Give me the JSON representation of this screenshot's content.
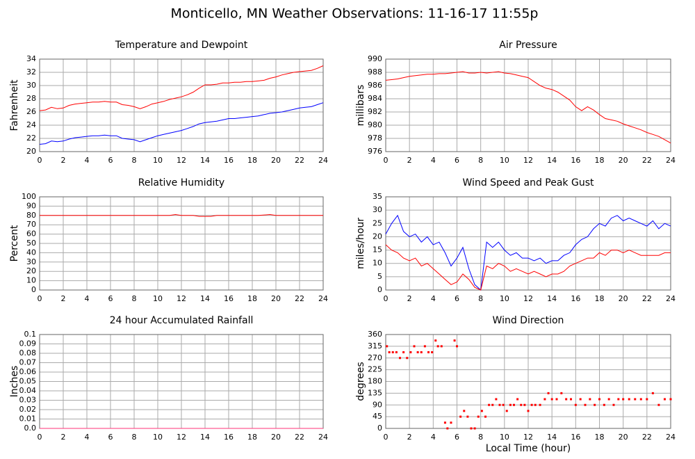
{
  "title": "Monticello, MN Weather Observations: 11-16-17 11:55p",
  "chart_data": [
    {
      "type": "line",
      "title": "Temperature and Dewpoint",
      "y_label": "Fahrenheit",
      "x": [
        0,
        0.5,
        1,
        1.5,
        2,
        2.5,
        3,
        3.5,
        4,
        4.5,
        5,
        5.5,
        6,
        6.5,
        7,
        7.5,
        8,
        8.5,
        9,
        9.5,
        10,
        10.5,
        11,
        11.5,
        12,
        12.5,
        13,
        13.5,
        14,
        14.5,
        15,
        15.5,
        16,
        16.5,
        17,
        17.5,
        18,
        18.5,
        19,
        19.5,
        20,
        20.5,
        21,
        21.5,
        22,
        22.5,
        23,
        23.5,
        24
      ],
      "series": [
        {
          "color": "#ff0000",
          "values": [
            26.2,
            26.3,
            26.7,
            26.5,
            26.6,
            27.0,
            27.2,
            27.3,
            27.4,
            27.5,
            27.5,
            27.6,
            27.5,
            27.5,
            27.1,
            27.0,
            26.8,
            26.5,
            26.8,
            27.2,
            27.4,
            27.6,
            27.9,
            28.1,
            28.3,
            28.6,
            29.0,
            29.6,
            30.1,
            30.1,
            30.2,
            30.4,
            30.4,
            30.5,
            30.5,
            30.6,
            30.6,
            30.7,
            30.8,
            31.1,
            31.3,
            31.6,
            31.8,
            32.0,
            32.1,
            32.2,
            32.3,
            32.6,
            33.0
          ]
        },
        {
          "color": "#0000ff",
          "values": [
            21.1,
            21.2,
            21.6,
            21.5,
            21.6,
            21.9,
            22.1,
            22.2,
            22.3,
            22.4,
            22.4,
            22.5,
            22.4,
            22.4,
            22.0,
            21.9,
            21.8,
            21.5,
            21.8,
            22.1,
            22.4,
            22.6,
            22.8,
            23.0,
            23.2,
            23.5,
            23.8,
            24.2,
            24.4,
            24.5,
            24.6,
            24.8,
            25.0,
            25.0,
            25.1,
            25.2,
            25.3,
            25.4,
            25.6,
            25.8,
            25.9,
            26.0,
            26.2,
            26.4,
            26.6,
            26.7,
            26.8,
            27.1,
            27.4
          ]
        }
      ],
      "xlim": [
        0,
        24
      ],
      "xticks": [
        0,
        2,
        4,
        6,
        8,
        10,
        12,
        14,
        16,
        18,
        20,
        22,
        24
      ],
      "ylim": [
        20,
        34
      ],
      "yticks": [
        20,
        22,
        24,
        26,
        28,
        30,
        32,
        34
      ],
      "grid": true
    },
    {
      "type": "line",
      "title": "Air Pressure",
      "y_label": "millibars",
      "x": [
        0,
        0.5,
        1,
        1.5,
        2,
        2.5,
        3,
        3.5,
        4,
        4.5,
        5,
        5.5,
        6,
        6.5,
        7,
        7.5,
        8,
        8.5,
        9,
        9.5,
        10,
        10.5,
        11,
        11.5,
        12,
        12.5,
        13,
        13.5,
        14,
        14.5,
        15,
        15.5,
        16,
        16.5,
        17,
        17.5,
        18,
        18.5,
        19,
        19.5,
        20,
        20.5,
        21,
        21.5,
        22,
        22.5,
        23,
        23.5,
        24
      ],
      "series": [
        {
          "color": "#ff0000",
          "values": [
            986.8,
            986.9,
            987.0,
            987.2,
            987.4,
            987.5,
            987.6,
            987.7,
            987.7,
            987.8,
            987.8,
            987.9,
            988.0,
            988.1,
            987.9,
            987.9,
            988.0,
            987.9,
            988.0,
            988.1,
            987.9,
            987.8,
            987.6,
            987.4,
            987.2,
            986.6,
            986.0,
            985.6,
            985.4,
            985.0,
            984.4,
            983.8,
            982.8,
            982.2,
            982.8,
            982.3,
            981.6,
            981.0,
            980.8,
            980.6,
            980.2,
            979.9,
            979.6,
            979.3,
            978.9,
            978.6,
            978.3,
            977.8,
            977.3
          ]
        }
      ],
      "xlim": [
        0,
        24
      ],
      "xticks": [
        0,
        2,
        4,
        6,
        8,
        10,
        12,
        14,
        16,
        18,
        20,
        22,
        24
      ],
      "ylim": [
        976,
        990
      ],
      "yticks": [
        976,
        978,
        980,
        982,
        984,
        986,
        988,
        990
      ],
      "grid": true
    },
    {
      "type": "line",
      "title": "Relative Humidity",
      "y_label": "Percent",
      "x": [
        0,
        11,
        11.5,
        12,
        13,
        13.5,
        14,
        14.5,
        15,
        18.5,
        19.5,
        20,
        24
      ],
      "series": [
        {
          "color": "#ff0000",
          "values": [
            80,
            80,
            81,
            80,
            80,
            79,
            79,
            79,
            80,
            80,
            81,
            80,
            80
          ]
        }
      ],
      "xlim": [
        0,
        24
      ],
      "xticks": [
        0,
        2,
        4,
        6,
        8,
        10,
        12,
        14,
        16,
        18,
        20,
        22,
        24
      ],
      "ylim": [
        0,
        100
      ],
      "yticks": [
        0,
        10,
        20,
        30,
        40,
        50,
        60,
        70,
        80,
        90,
        100
      ],
      "grid": true
    },
    {
      "type": "line",
      "title": "Wind Speed and Peak Gust",
      "y_label": "miles/hour",
      "x": [
        0,
        0.5,
        1,
        1.5,
        2,
        2.5,
        3,
        3.5,
        4,
        4.5,
        5,
        5.5,
        6,
        6.5,
        7,
        7.5,
        8,
        8.5,
        9,
        9.5,
        10,
        10.5,
        11,
        11.5,
        12,
        12.5,
        13,
        13.5,
        14,
        14.5,
        15,
        15.5,
        16,
        16.5,
        17,
        17.5,
        18,
        18.5,
        19,
        19.5,
        20,
        20.5,
        21,
        21.5,
        22,
        22.5,
        23,
        23.5,
        24
      ],
      "series": [
        {
          "color": "#0000ff",
          "values": [
            21,
            25,
            28,
            22,
            20,
            21,
            18,
            20,
            17,
            18,
            14,
            9,
            12,
            16,
            8,
            2,
            0,
            18,
            16,
            18,
            15,
            13,
            14,
            12,
            12,
            11,
            12,
            10,
            11,
            11,
            13,
            14,
            17,
            19,
            20,
            23,
            25,
            24,
            27,
            28,
            26,
            27,
            26,
            25,
            24,
            26,
            23,
            25,
            24
          ]
        },
        {
          "color": "#ff0000",
          "values": [
            17,
            15,
            14,
            12,
            11,
            12,
            9,
            10,
            8,
            6,
            4,
            2,
            3,
            6,
            4,
            1,
            0,
            9,
            8,
            10,
            9,
            7,
            8,
            7,
            6,
            7,
            6,
            5,
            6,
            6,
            7,
            9,
            10,
            11,
            12,
            12,
            14,
            13,
            15,
            15,
            14,
            15,
            14,
            13,
            13,
            13,
            13,
            14,
            14
          ]
        }
      ],
      "xlim": [
        0,
        24
      ],
      "xticks": [
        0,
        2,
        4,
        6,
        8,
        10,
        12,
        14,
        16,
        18,
        20,
        22,
        24
      ],
      "ylim": [
        0,
        35
      ],
      "yticks": [
        0,
        5,
        10,
        15,
        20,
        25,
        30,
        35
      ],
      "grid": true
    },
    {
      "type": "line",
      "title": "24 hour Accumulated Rainfall",
      "y_label": "Inches",
      "x": [
        0,
        24
      ],
      "series": [
        {
          "color": "#ff3377",
          "values": [
            0,
            0
          ]
        }
      ],
      "xlim": [
        0,
        24
      ],
      "xticks": [
        0,
        2,
        4,
        6,
        8,
        10,
        12,
        14,
        16,
        18,
        20,
        22,
        24
      ],
      "ylim": [
        0,
        0.1
      ],
      "yticks": [
        {
          "value": 0,
          "label": "0.0"
        },
        0.01,
        0.02,
        0.03,
        0.04,
        0.05,
        0.06,
        0.07,
        0.08,
        0.09,
        0.1
      ],
      "grid": true
    },
    {
      "type": "scatter",
      "title": "Wind Direction",
      "y_label": "degrees",
      "x_label": "Local Time (hour)",
      "x": [
        0.1,
        0.3,
        0.6,
        0.9,
        1.2,
        1.5,
        1.8,
        2.1,
        2.4,
        2.7,
        3,
        3.3,
        3.6,
        3.9,
        4.2,
        4.4,
        4.7,
        5,
        5.2,
        5.5,
        5.8,
        6,
        6.3,
        6.6,
        6.9,
        7.2,
        7.5,
        7.8,
        8.1,
        8.4,
        8.7,
        9,
        9.3,
        9.6,
        9.9,
        10.2,
        10.5,
        10.8,
        11.1,
        11.4,
        11.7,
        12,
        12.3,
        12.6,
        13,
        13.4,
        13.7,
        14,
        14.4,
        14.8,
        15.2,
        15.6,
        16,
        16.4,
        16.8,
        17.2,
        17.6,
        18,
        18.4,
        18.8,
        19.2,
        19.6,
        20,
        20.5,
        21,
        21.5,
        22,
        22.5,
        23,
        23.5,
        24
      ],
      "series": [
        {
          "color": "#ff0000",
          "values": [
            315,
            292,
            292,
            292,
            270,
            292,
            270,
            292,
            315,
            292,
            292,
            315,
            292,
            292,
            337,
            315,
            315,
            22,
            0,
            22,
            337,
            315,
            45,
            67,
            45,
            0,
            0,
            45,
            67,
            45,
            90,
            90,
            112,
            90,
            90,
            67,
            90,
            90,
            112,
            90,
            90,
            67,
            90,
            90,
            90,
            112,
            135,
            112,
            112,
            135,
            112,
            112,
            90,
            112,
            90,
            112,
            90,
            112,
            90,
            112,
            90,
            112,
            112,
            112,
            112,
            112,
            112,
            135,
            90,
            112,
            112
          ]
        }
      ],
      "xlim": [
        0,
        24
      ],
      "xticks": [
        0,
        2,
        4,
        6,
        8,
        10,
        12,
        14,
        16,
        18,
        20,
        22,
        24
      ],
      "ylim": [
        0,
        360
      ],
      "yticks": [
        0,
        45,
        90,
        135,
        180,
        225,
        270,
        315,
        360
      ],
      "grid": true
    }
  ]
}
